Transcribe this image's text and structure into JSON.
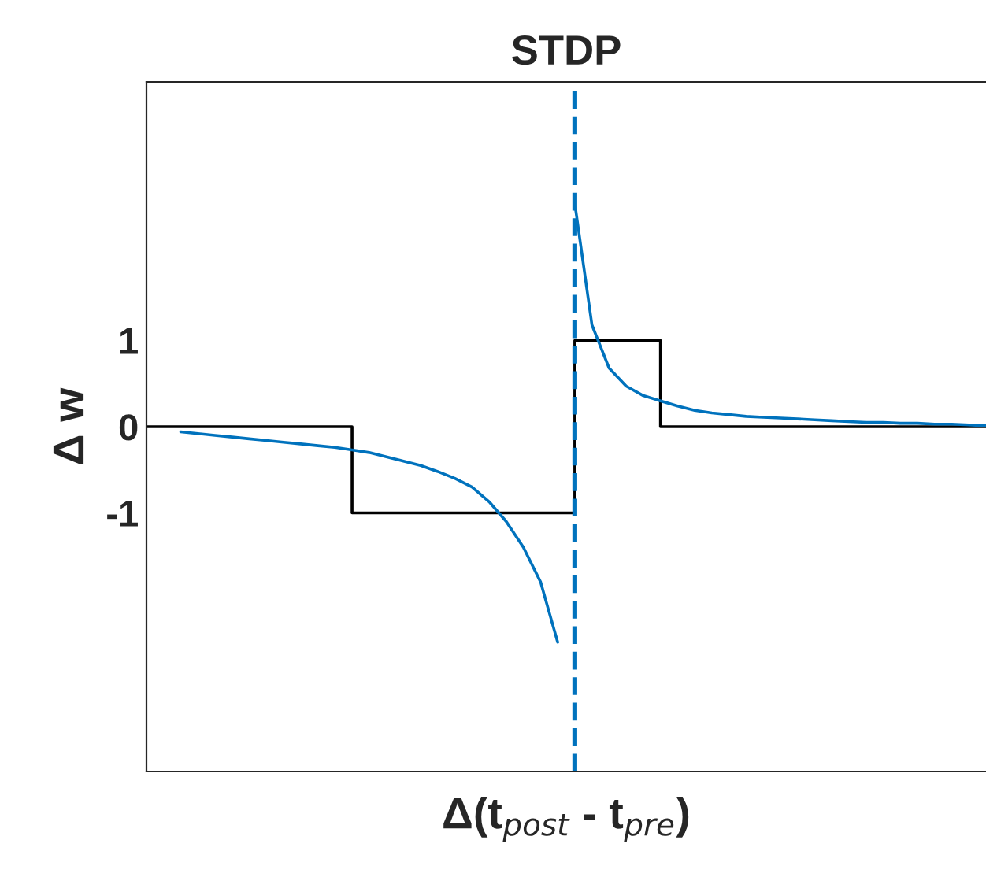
{
  "chart_data": {
    "type": "line",
    "title": "STDP",
    "xlabel": "Δ(t$_{post}$ - t$_{pre}$)",
    "ylabel": "Δ w",
    "categories": [
      null,
      null,
      null,
      null,
      null,
      null,
      null,
      null,
      null,
      null,
      null,
      null,
      null,
      null,
      null,
      null,
      null,
      null,
      null,
      null,
      null,
      null,
      null,
      null,
      null,
      null,
      null,
      null,
      null,
      null,
      null,
      null,
      null,
      null,
      null,
      null,
      null,
      null,
      null,
      null,
      null,
      null,
      null,
      null,
      null,
      null,
      null,
      null,
      null,
      null
    ],
    "ylim": [
      -4,
      4
    ],
    "yticks": [
      -1,
      0,
      1
    ],
    "tick_labels": "y",
    "grid": false,
    "legend": false,
    "series": [
      {
        "type": "step",
        "color": "#000000",
        "line_style": "solid",
        "values": [
          0,
          0,
          0,
          0,
          0,
          0,
          0,
          0,
          0,
          0,
          0,
          0,
          -1,
          -1,
          -1,
          -1,
          -1,
          -1,
          -1,
          -1,
          -1,
          -1,
          -1,
          -1,
          -1,
          1,
          1,
          1,
          1,
          1,
          0,
          0,
          0,
          0,
          0,
          0,
          0,
          0,
          0,
          0,
          0,
          0,
          0,
          0,
          0,
          0,
          0,
          0,
          0,
          0
        ]
      },
      {
        "color": "#0072bd",
        "line_style": "solid",
        "values": [
          null,
          null,
          -0.06,
          -0.08,
          -0.1,
          -0.12,
          -0.14,
          -0.16,
          -0.18,
          -0.2,
          -0.22,
          -0.24,
          -0.27,
          -0.3,
          -0.35,
          -0.4,
          -0.45,
          -0.52,
          -0.6,
          -0.7,
          -0.87,
          -1.1,
          -1.4,
          -1.8,
          -2.5,
          null,
          null,
          null,
          null,
          null,
          null,
          null,
          null,
          null,
          null,
          null,
          null,
          null,
          null,
          null,
          null,
          null,
          null,
          null,
          null,
          null,
          null,
          null,
          null,
          null
        ]
      },
      {
        "color": "#0072bd",
        "line_style": "solid",
        "values": [
          null,
          null,
          null,
          null,
          null,
          null,
          null,
          null,
          null,
          null,
          null,
          null,
          null,
          null,
          null,
          null,
          null,
          null,
          null,
          null,
          null,
          null,
          null,
          null,
          null,
          2.59,
          1.18,
          0.68,
          0.47,
          0.36,
          0.3,
          0.24,
          0.19,
          0.16,
          0.14,
          0.12,
          0.11,
          0.1,
          0.09,
          0.08,
          0.07,
          0.06,
          0.05,
          0.05,
          0.04,
          0.04,
          0.03,
          0.03,
          0.02,
          0.01
        ]
      }
    ]
  }
}
